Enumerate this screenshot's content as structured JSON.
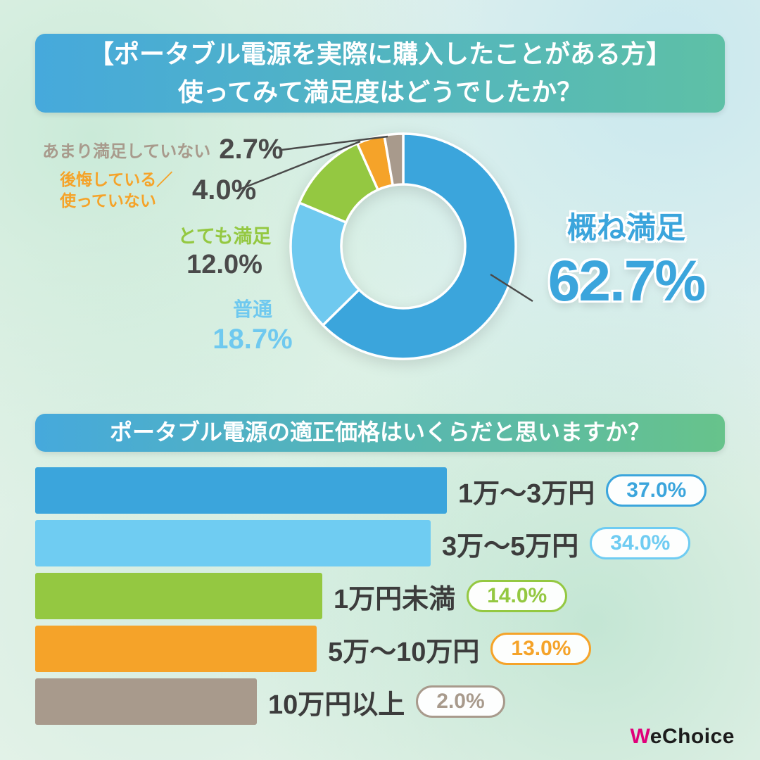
{
  "page": {
    "background": "#eaf4ec"
  },
  "logo": {
    "accent": "W",
    "rest": "eChoice"
  },
  "header1": {
    "line1": "【ポータブル電源を実際に購入したことがある方】",
    "line2": "使ってみて満足度はどうでしたか？",
    "gradient_left": "#46a9dc",
    "gradient_right": "#5ec0a6"
  },
  "header2": {
    "title": "ポータブル電源の適正価格はいくらだと思いますか？",
    "gradient_left": "#46a9dc",
    "gradient_right": "#67c38b"
  },
  "chart_data": [
    {
      "type": "pie",
      "subtype": "donut",
      "title": "【ポータブル電源を実際に購入したことがある方】使ってみて満足度はどうでしたか？",
      "direction": "clockwise",
      "start_angle_deg": 0,
      "segments": [
        {
          "label": "概ね満足",
          "value": 62.7,
          "value_label": "62.7%",
          "color": "#3BA5DC"
        },
        {
          "label": "普通",
          "value": 18.7,
          "value_label": "18.7%",
          "color": "#6FC9EF"
        },
        {
          "label": "とても満足",
          "value": 12.0,
          "value_label": "12.0%",
          "color": "#94C841"
        },
        {
          "label": "後悔している／使っていない",
          "value": 4.0,
          "value_label": "4.0%",
          "color": "#F5A329"
        },
        {
          "label": "あまり満足していない",
          "value": 2.7,
          "value_label": "2.7%",
          "color": "#A89A8C"
        }
      ]
    },
    {
      "type": "bar",
      "orientation": "horizontal",
      "title": "ポータブル電源の適正価格はいくらだと思いますか？",
      "categories": [
        "1万〜3万円",
        "3万〜5万円",
        "1万円未満",
        "5万〜10万円",
        "10万円以上"
      ],
      "values": [
        37.0,
        34.0,
        14.0,
        13.0,
        2.0
      ],
      "value_labels": [
        "37.0%",
        "34.0%",
        "14.0%",
        "13.0%",
        "2.0%"
      ],
      "colors": [
        "#3BA5DC",
        "#6FCCF2",
        "#94C841",
        "#F5A329",
        "#A89A8C"
      ],
      "xlim": [
        0,
        40
      ],
      "grid": false,
      "legend": "none"
    }
  ]
}
